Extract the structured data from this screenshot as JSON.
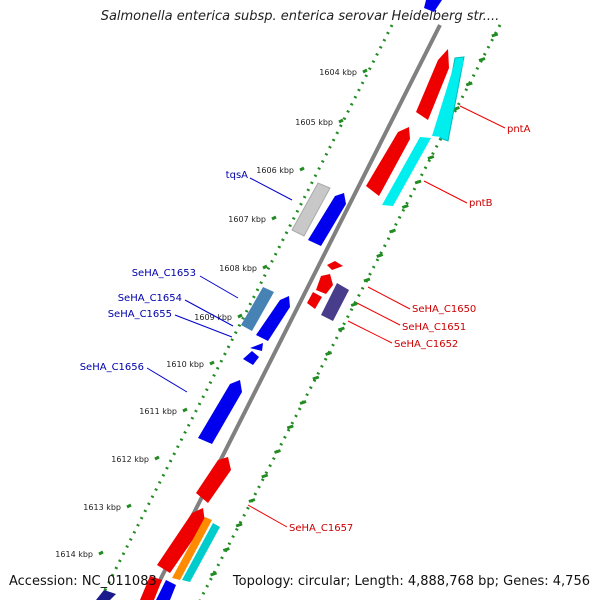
{
  "title": "Salmonella enterica subsp. enterica serovar Heidelberg str....",
  "footer": {
    "accession": "Accession: NC_011083",
    "summary": "Topology: circular; Length: 4,888,768 bp; Genes: 4,756"
  },
  "colors": {
    "backbone": "#808080",
    "tick_track": "#228b22",
    "forward_gene": "#0000ee",
    "reverse_gene": "#ee0000",
    "forward_label": "#0000aa",
    "reverse_label": "#cc0000"
  },
  "ticks": [
    "1604 kbp",
    "1605 kbp",
    "1606 kbp",
    "1607 kbp",
    "1608 kbp",
    "1609 kbp",
    "1610 kbp",
    "1611 kbp",
    "1612 kbp",
    "1613 kbp",
    "1614 kbp"
  ],
  "gene_labels": {
    "forward": [
      "tqsA",
      "SeHA_C1653",
      "SeHA_C1654",
      "SeHA_C1655",
      "SeHA_C1656"
    ],
    "reverse": [
      "pntA",
      "pntB",
      "SeHA_C1650",
      "SeHA_C1651",
      "SeHA_C1652",
      "SeHA_C1657"
    ]
  }
}
